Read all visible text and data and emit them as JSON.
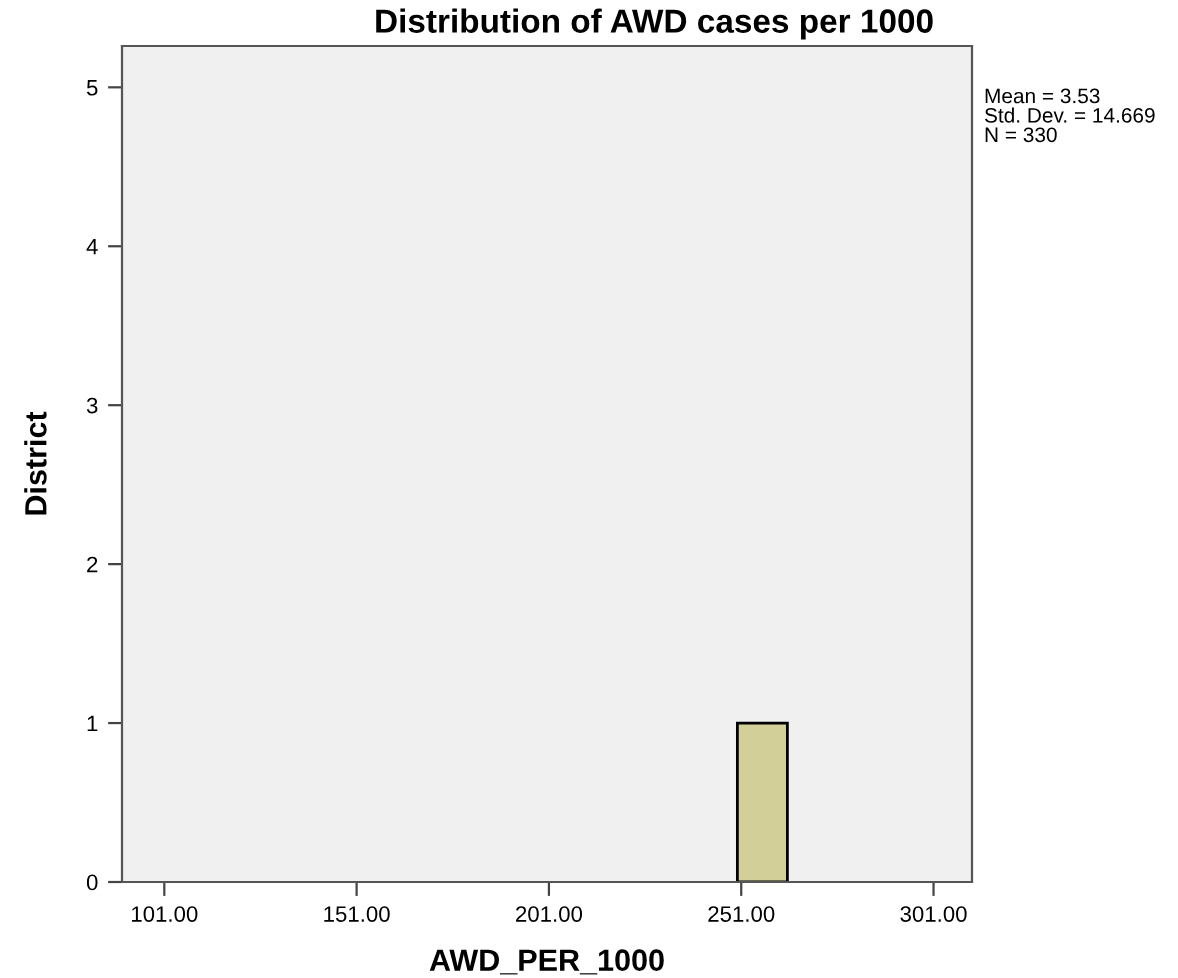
{
  "chart_data": {
    "type": "histogram",
    "title": "Distribution of AWD cases per 1000",
    "xlabel": "AWD_PER_1000",
    "ylabel": "District",
    "bins": [
      250,
      263
    ],
    "values": [
      1
    ],
    "color": "#d3cf98",
    "xlim": [
      90,
      311
    ],
    "ylim": [
      0,
      5.26
    ],
    "xticks": [
      {
        "value": 101,
        "label": "101.00"
      },
      {
        "value": 151,
        "label": "151.00"
      },
      {
        "value": 201,
        "label": "201.00"
      },
      {
        "value": 251,
        "label": "251.00"
      },
      {
        "value": 301,
        "label": "301.00"
      }
    ],
    "yticks": [
      0,
      1,
      2,
      3,
      4,
      5
    ],
    "annotations": [
      "Mean = 3.53\nStd. Dev. = 14.669\nN = 330"
    ],
    "grid": false
  }
}
